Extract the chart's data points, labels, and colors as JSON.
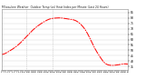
{
  "title": "Milwaukee Weather  Outdoor Temp (vs) Heat Index per Minute (Last 24 Hours)",
  "line_color": "#ff0000",
  "bg_color": "#ffffff",
  "plot_bg_color": "#ffffff",
  "grid_color": "#c8c8c8",
  "vline_color": "#b0b0b0",
  "ylim": [
    32,
    88
  ],
  "ytick_labels": [
    "35",
    "40",
    "45",
    "50",
    "55",
    "60",
    "65",
    "70",
    "75",
    "80",
    "85"
  ],
  "ytick_values": [
    35,
    40,
    45,
    50,
    55,
    60,
    65,
    70,
    75,
    80,
    85
  ],
  "n_points": 1440,
  "vline_positions": [
    0.2,
    0.405
  ],
  "keypoints_x": [
    0.0,
    0.03,
    0.06,
    0.1,
    0.16,
    0.2,
    0.26,
    0.33,
    0.38,
    0.43,
    0.48,
    0.53,
    0.58,
    0.63,
    0.68,
    0.73,
    0.78,
    0.82,
    0.86,
    0.9,
    0.95,
    1.0
  ],
  "keypoints_y": [
    46,
    47,
    49,
    52,
    58,
    63,
    70,
    76,
    79,
    80,
    80,
    79,
    78,
    74,
    66,
    54,
    44,
    38,
    36,
    36,
    37,
    37
  ]
}
